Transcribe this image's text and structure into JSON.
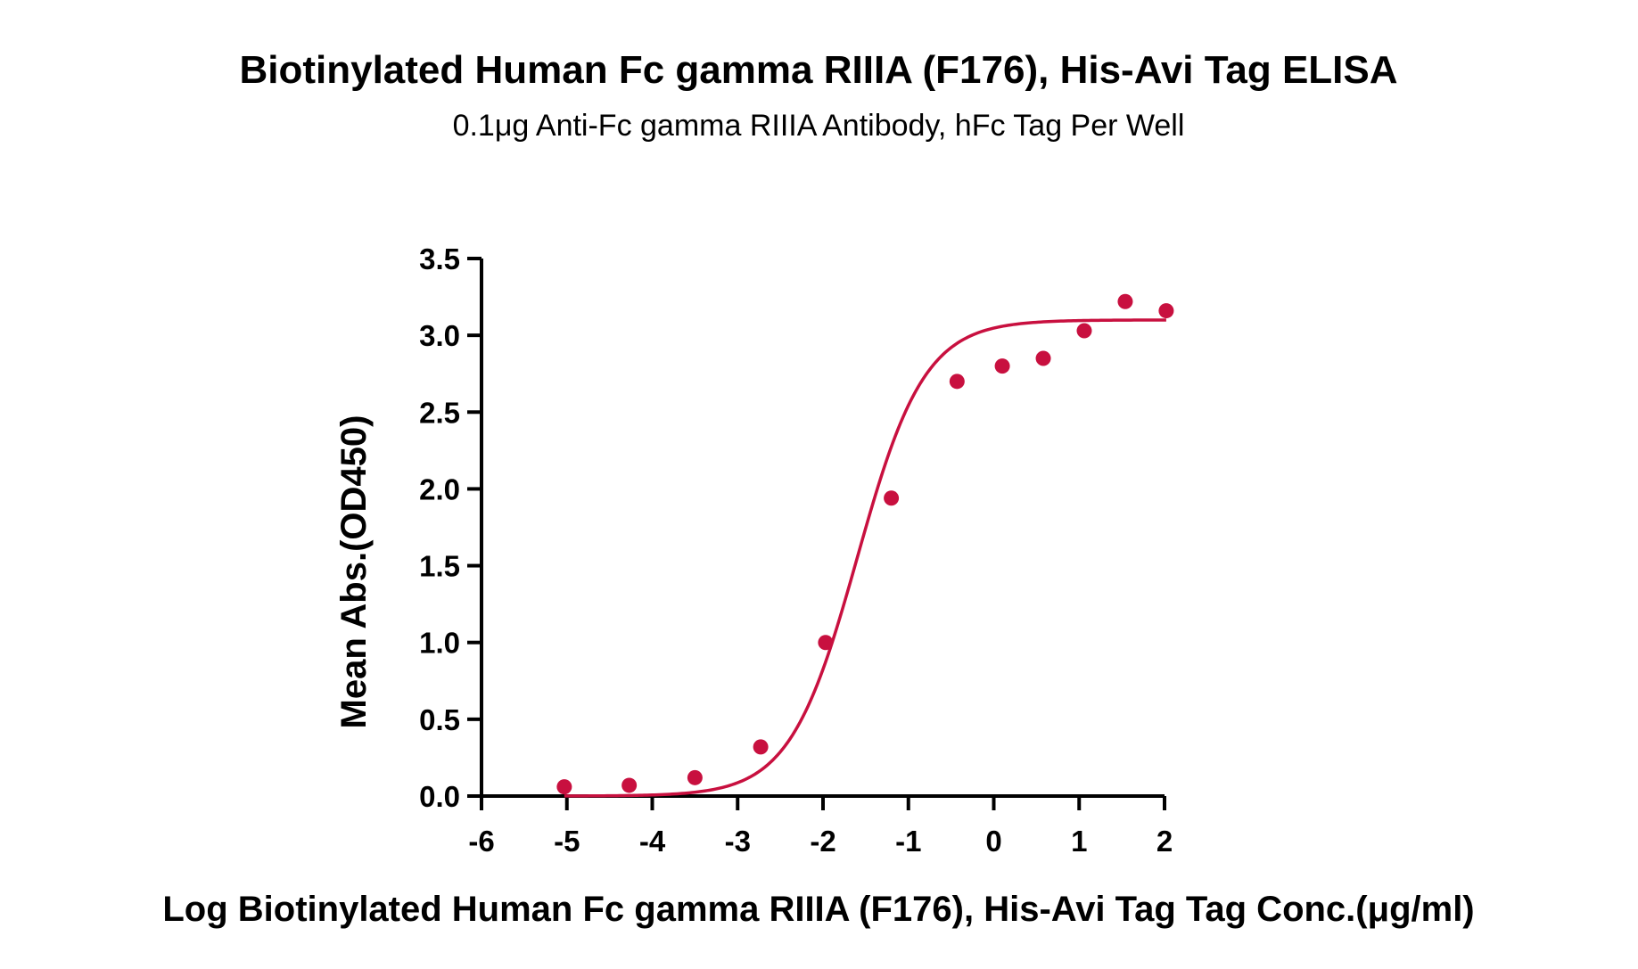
{
  "chart_data": {
    "type": "scatter",
    "title": "Biotinylated Human Fc gamma RIIIA (F176), His-Avi Tag ELISA",
    "subtitle": "0.1μg Anti-Fc gamma RIIIA Antibody, hFc Tag Per Well",
    "xlabel": "Log Biotinylated Human Fc gamma RIIIA (F176), His-Avi Tag Tag Conc.(μg/ml)",
    "ylabel": "Mean Abs.(OD450)",
    "xlim": [
      -6,
      2
    ],
    "ylim": [
      0,
      3.5
    ],
    "x_ticks": [
      "-6",
      "-5",
      "-4",
      "-3",
      "-2",
      "-1",
      "0",
      "1",
      "2"
    ],
    "y_ticks": [
      "0.0",
      "0.5",
      "1.0",
      "1.5",
      "2.0",
      "2.5",
      "3.0",
      "3.5"
    ],
    "grid": false,
    "color": "#C8103F",
    "series": [
      {
        "points": [
          {
            "x": -5.03,
            "y": 0.06
          },
          {
            "x": -4.27,
            "y": 0.07
          },
          {
            "x": -3.5,
            "y": 0.12
          },
          {
            "x": -2.73,
            "y": 0.32
          },
          {
            "x": -1.97,
            "y": 1.0
          },
          {
            "x": -1.2,
            "y": 1.94
          },
          {
            "x": -0.43,
            "y": 2.7
          },
          {
            "x": 0.1,
            "y": 2.8
          },
          {
            "x": 0.58,
            "y": 2.85
          },
          {
            "x": 1.06,
            "y": 3.03
          },
          {
            "x": 1.54,
            "y": 3.22
          },
          {
            "x": 2.02,
            "y": 3.16
          }
        ],
        "fit": {
          "model": "4PL",
          "bottom": 0.0,
          "top": 3.1,
          "logEC50": -1.6,
          "hill": 1.1,
          "x_range": [
            -5.03,
            2.02
          ]
        }
      }
    ]
  }
}
